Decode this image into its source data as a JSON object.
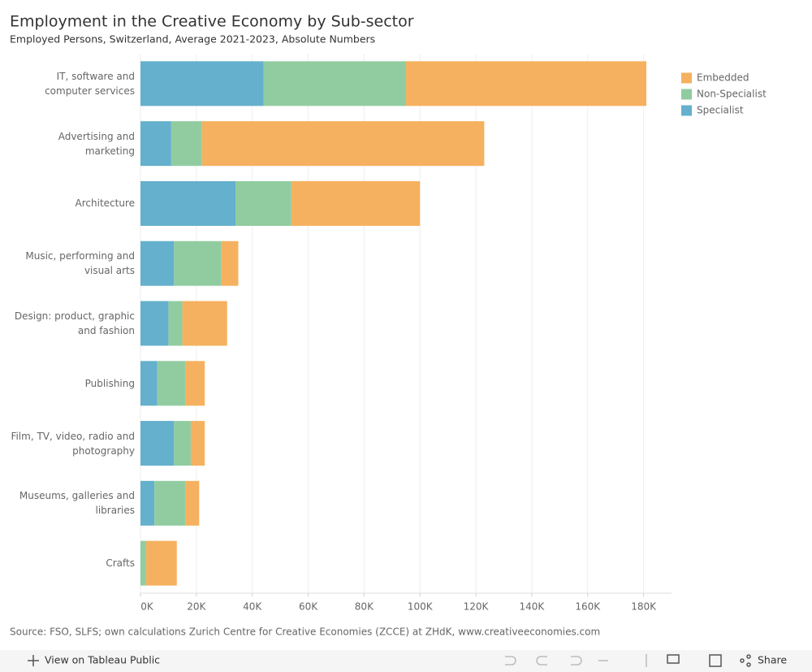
{
  "chart_data": {
    "type": "stacked-bar-horizontal",
    "title": "Employment in the Creative Economy by Sub-sector",
    "subtitle": "Employed Persons, Switzerland, Average 2021-2023, Absolute Numbers",
    "categories": [
      "IT, software and computer services",
      "Advertising and marketing",
      "Architecture",
      "Music, performing and visual arts",
      "Design: product, graphic and fashion",
      "Publishing",
      "Film, TV, video, radio and photography",
      "Museums, galleries and libraries",
      "Crafts"
    ],
    "series": [
      {
        "name": "Specialist",
        "color": "#64b0cd",
        "values": [
          44000,
          11000,
          34000,
          12000,
          10000,
          6000,
          12000,
          5000,
          0
        ]
      },
      {
        "name": "Non-Specialist",
        "color": "#91cca1",
        "values": [
          51000,
          11000,
          20000,
          17000,
          5000,
          10000,
          6000,
          11000,
          2000
        ]
      },
      {
        "name": "Embedded",
        "color": "#f5b15f",
        "values": [
          86000,
          101000,
          46000,
          6000,
          16000,
          7000,
          5000,
          5000,
          11000
        ]
      }
    ],
    "xlim": [
      0,
      190000
    ],
    "xticks": [
      {
        "value": 0,
        "label": "0K"
      },
      {
        "value": 20000,
        "label": "20K"
      },
      {
        "value": 40000,
        "label": "40K"
      },
      {
        "value": 60000,
        "label": "60K"
      },
      {
        "value": 80000,
        "label": "80K"
      },
      {
        "value": 100000,
        "label": "100K"
      },
      {
        "value": 120000,
        "label": "120K"
      },
      {
        "value": 140000,
        "label": "140K"
      },
      {
        "value": 160000,
        "label": "160K"
      },
      {
        "value": 180000,
        "label": "180K"
      }
    ],
    "grid": true,
    "legend": "top-right",
    "source": "Source: FSO, SLFS; own calculations Zurich Centre for Creative Economies (ZCCE) at ZHdK, www.creativeeconomies.com"
  },
  "toolbar": {
    "view": "View on Tableau Public",
    "share": "Share"
  }
}
